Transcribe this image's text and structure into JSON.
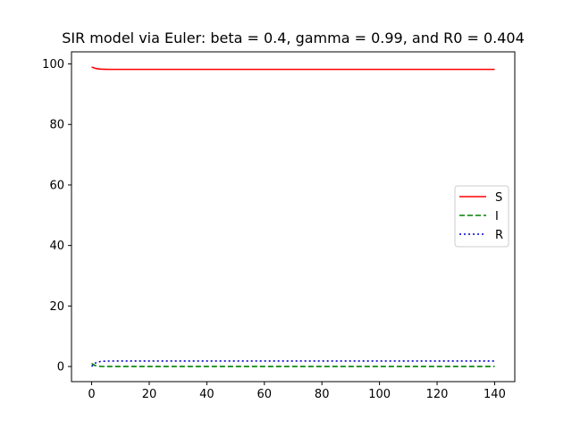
{
  "chart_data": {
    "type": "line",
    "title": "SIR model via Euler: beta = 0.4, gamma = 0.99, and R0 = 0.404",
    "xlabel": "",
    "ylabel": "",
    "xlim": [
      -7,
      147
    ],
    "ylim": [
      -5,
      104
    ],
    "x_ticks": [
      0,
      20,
      40,
      60,
      80,
      100,
      120,
      140
    ],
    "y_ticks": [
      0,
      20,
      40,
      60,
      80,
      100
    ],
    "grid": false,
    "legend_position": "center-right",
    "series": [
      {
        "name": "S",
        "color": "#ff0000",
        "dash": "solid",
        "x": [
          0,
          1,
          2,
          3,
          4,
          5,
          6,
          8,
          10,
          20,
          40,
          60,
          80,
          100,
          120,
          140
        ],
        "y": [
          99.0,
          98.6,
          98.4,
          98.3,
          98.25,
          98.22,
          98.2,
          98.2,
          98.2,
          98.2,
          98.2,
          98.2,
          98.2,
          98.2,
          98.2,
          98.2
        ]
      },
      {
        "name": "I",
        "color": "#008000",
        "dash": "dashed",
        "x": [
          0,
          1,
          2,
          3,
          4,
          5,
          6,
          8,
          10,
          20,
          40,
          60,
          80,
          100,
          120,
          140
        ],
        "y": [
          1.0,
          0.4,
          0.15,
          0.05,
          0.02,
          0.01,
          0.0,
          0.0,
          0.0,
          0.0,
          0.0,
          0.0,
          0.0,
          0.0,
          0.0,
          0.0
        ]
      },
      {
        "name": "R",
        "color": "#0000cc",
        "dash": "dotted",
        "x": [
          0,
          1,
          2,
          3,
          4,
          5,
          6,
          8,
          10,
          20,
          40,
          60,
          80,
          100,
          120,
          140
        ],
        "y": [
          0.0,
          1.0,
          1.45,
          1.65,
          1.73,
          1.77,
          1.79,
          1.8,
          1.8,
          1.8,
          1.8,
          1.8,
          1.8,
          1.8,
          1.8,
          1.8
        ]
      }
    ]
  }
}
